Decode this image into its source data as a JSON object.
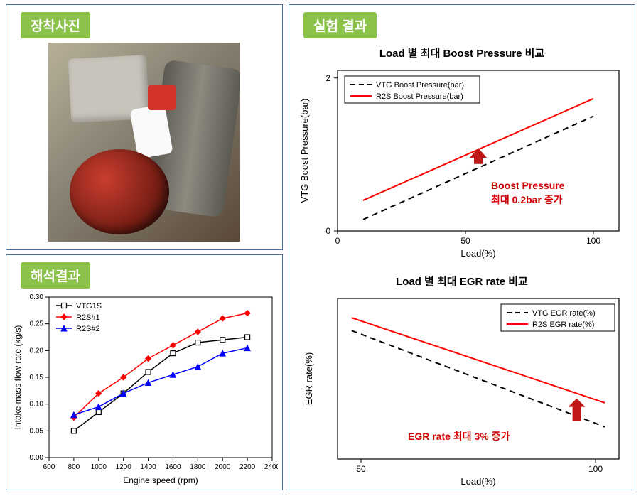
{
  "panels": {
    "top_left_title": "장착사진",
    "bottom_left_title": "해석결과",
    "right_title": "실험 결과"
  },
  "analysis_chart": {
    "type": "line",
    "x_label": "Engine speed (rpm)",
    "y_label": "Intake mass flow rate (kg/s)",
    "x_ticks": [
      600,
      800,
      1000,
      1200,
      1400,
      1600,
      1800,
      2000,
      2200,
      2400
    ],
    "y_ticks": [
      0,
      0.05,
      0.1,
      0.15,
      0.2,
      0.25,
      0.3
    ],
    "xlim": [
      600,
      2400
    ],
    "ylim": [
      0,
      0.3
    ],
    "series": [
      {
        "name": "VTG1S",
        "color": "#000000",
        "marker": "square",
        "fill": "#ffffff",
        "dash": false,
        "x": [
          800,
          1000,
          1200,
          1400,
          1600,
          1800,
          2000,
          2200
        ],
        "y": [
          0.05,
          0.085,
          0.12,
          0.16,
          0.195,
          0.215,
          0.22,
          0.225
        ]
      },
      {
        "name": "R2S#1",
        "color": "#ff0000",
        "marker": "diamond",
        "fill": "#ff0000",
        "dash": false,
        "x": [
          800,
          1000,
          1200,
          1400,
          1600,
          1800,
          2000,
          2200
        ],
        "y": [
          0.075,
          0.12,
          0.15,
          0.185,
          0.21,
          0.235,
          0.26,
          0.27
        ]
      },
      {
        "name": "R2S#2",
        "color": "#0000ff",
        "marker": "triangle",
        "fill": "#0000ff",
        "dash": false,
        "x": [
          800,
          1000,
          1200,
          1400,
          1600,
          1800,
          2000,
          2200
        ],
        "y": [
          0.08,
          0.095,
          0.12,
          0.14,
          0.155,
          0.17,
          0.195,
          0.205
        ]
      }
    ],
    "background": "#ffffff",
    "grid_color": "#000000"
  },
  "boost_chart": {
    "type": "line",
    "title": "Load 별 최대 Boost Pressure 비교",
    "x_label": "Load(%)",
    "y_label": "VTG Boost Pressure(bar)",
    "x_ticks": [
      0,
      50,
      100
    ],
    "y_ticks": [
      0,
      2
    ],
    "xlim": [
      0,
      110
    ],
    "ylim": [
      0,
      2.1
    ],
    "series": [
      {
        "name": "VTG Boost Pressure(bar)",
        "color": "#000000",
        "dash": true,
        "width": 2,
        "x": [
          10,
          100
        ],
        "y": [
          0.15,
          1.5
        ]
      },
      {
        "name": "R2S Boost Pressure(bar)",
        "color": "#ff0000",
        "dash": false,
        "width": 2,
        "x": [
          10,
          100
        ],
        "y": [
          0.4,
          1.73
        ]
      }
    ],
    "callout_lines": [
      "Boost Pressure",
      "최대  0.2bar 증가"
    ],
    "callout_color": "#d10000",
    "arrow_color": "#c01818"
  },
  "egr_chart": {
    "type": "line",
    "title": "Load 별 최대 EGR rate 비교",
    "x_label": "Load(%)",
    "y_label": "EGR rate(%)",
    "x_ticks": [
      50,
      100
    ],
    "xlim": [
      45,
      105
    ],
    "series": [
      {
        "name": "VTG EGR rate(%)",
        "color": "#000000",
        "dash": true,
        "width": 2,
        "x": [
          48,
          102
        ],
        "y": [
          0.8,
          0.2
        ]
      },
      {
        "name": "R2S EGR rate(%)",
        "color": "#ff0000",
        "dash": false,
        "width": 2,
        "x": [
          48,
          102
        ],
        "y": [
          0.88,
          0.35
        ]
      }
    ],
    "callout_lines": [
      "EGR rate 최대  3% 증가"
    ],
    "callout_color": "#d10000",
    "arrow_color": "#c01818"
  }
}
